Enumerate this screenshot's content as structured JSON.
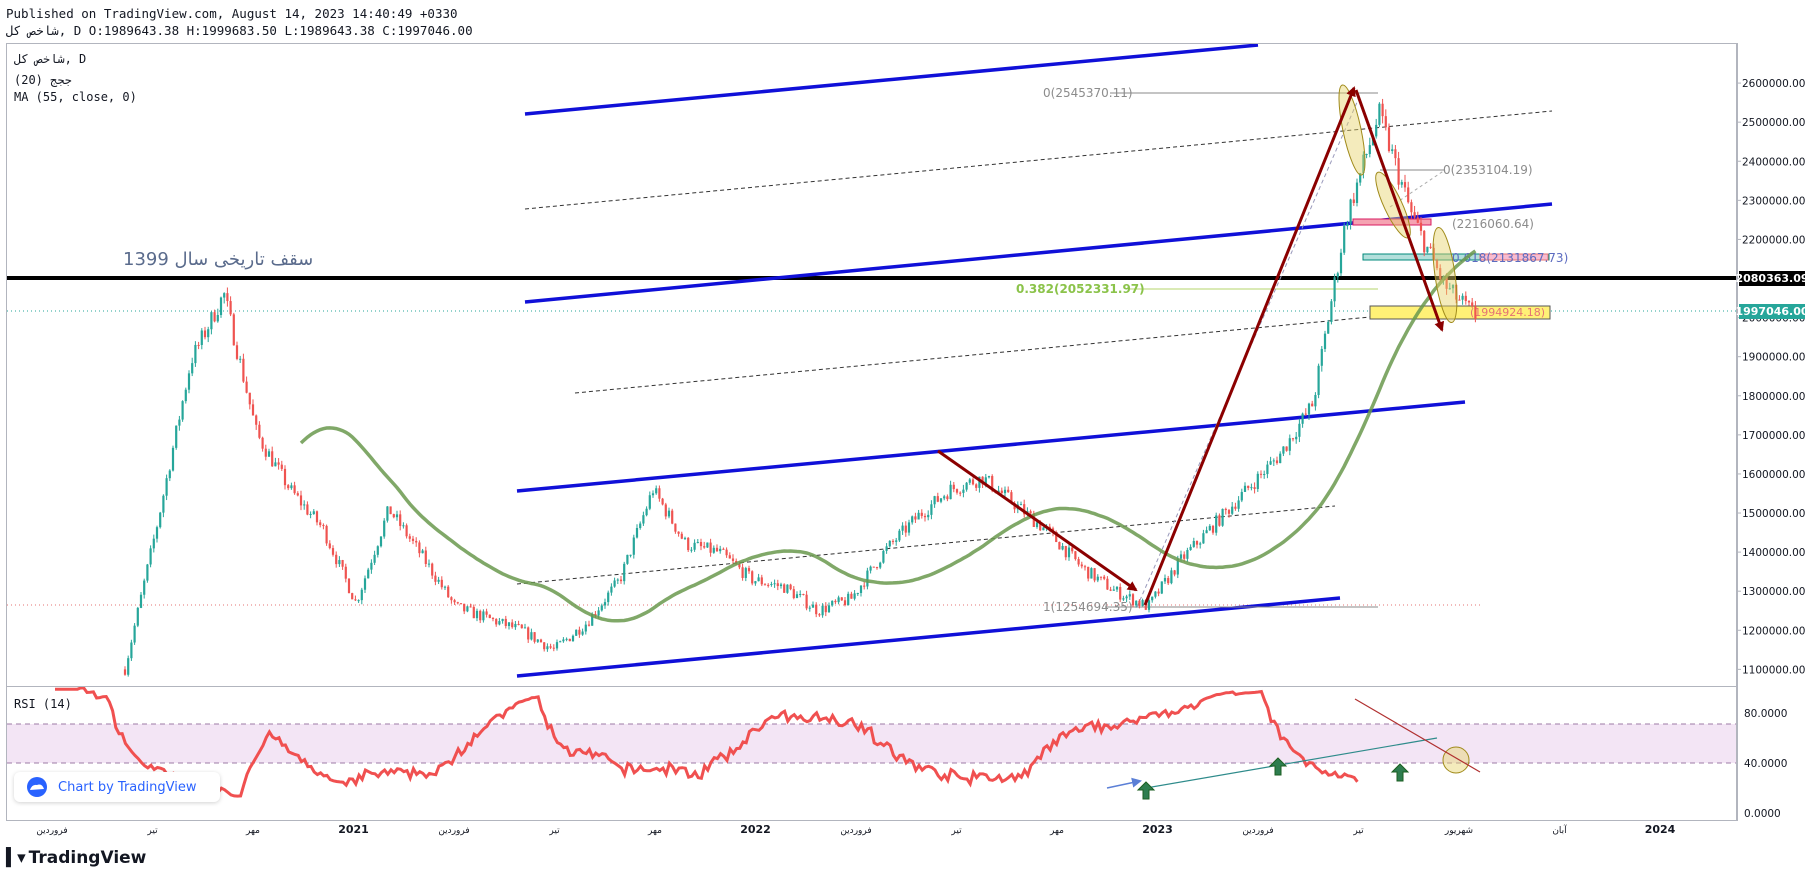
{
  "header": {
    "published": "Published on TradingView.com, August 14, 2023 14:40:49 +0330",
    "ohlc": "شاخص کل, D O:1989643.38 H:1999683.50 L:1989643.38 C:1997046.00"
  },
  "legend": {
    "symbol": "شاخص کل, D",
    "indicator1": "(20) ججج",
    "indicator2": "MA (55, close, 0)"
  },
  "rsi": {
    "label": "RSI (14)"
  },
  "branding": {
    "chart_by": "Chart by TradingView",
    "footer": "TradingView"
  },
  "colors": {
    "up": "#26a69a",
    "down": "#ef5350",
    "channel": "#0000ff",
    "arrow": "#8b0000",
    "ma": "#5e8f3a",
    "rsi": "#f05050",
    "rsi_band": "#f3e5f5",
    "fib_green": "#8bc34a"
  },
  "chart_data": [
    {
      "type": "line",
      "title": "شاخص کل, D",
      "y_axis_ticks": [
        "2600000.00",
        "2500000.00",
        "2400000.00",
        "2300000.00",
        "2200000.00",
        "2100000.00",
        "2000000.00",
        "1900000.00",
        "1800000.00",
        "1700000.00",
        "1600000.00",
        "1500000.00",
        "1400000.00",
        "1300000.00",
        "1200000.00",
        "1100000.00"
      ],
      "ylim": [
        1060000,
        2700000
      ],
      "x_axis_ticks": [
        "فروردین",
        "تیر",
        "مهر",
        "2021",
        "فروردین",
        "تیر",
        "مهر",
        "2022",
        "فروردین",
        "تیر",
        "مهر",
        "2023",
        "فروردین",
        "تیر",
        "شهریور",
        "آبان",
        "2024"
      ],
      "price_labels": {
        "horizontal_line": "2080363.09",
        "last_close": "1997046.00"
      },
      "annotations": {
        "historic_top": "سقف تاریخی سال 1399",
        "fib_top": "0(2545370.11)",
        "fib_second": "0(2353104.19)",
        "fib_third": "(2216060.64)",
        "fib_fourth": "0.618(2131867.73)",
        "fib_382": "0.382(2052331.97)",
        "fib_bottom": "1(1254694.35)",
        "fib_yellow": "(1994924.18)"
      },
      "series": [
        {
          "name": "شاخص کل",
          "x": [
            "2020-03",
            "2020-04",
            "2020-05",
            "2020-06",
            "2020-07",
            "2020-08",
            "2020-09",
            "2020-10",
            "2020-11",
            "2020-12",
            "2021-01",
            "2021-02",
            "2021-03",
            "2021-04",
            "2021-05",
            "2021-06",
            "2021-07",
            "2021-08",
            "2021-09",
            "2021-10",
            "2021-11",
            "2021-12",
            "2022-01",
            "2022-02",
            "2022-03",
            "2022-04",
            "2022-05",
            "2022-06",
            "2022-07",
            "2022-08",
            "2022-09",
            "2022-10",
            "2022-11",
            "2022-12",
            "2023-01",
            "2023-02",
            "2023-03",
            "2023-04",
            "2023-05",
            "2023-06",
            "2023-07",
            "2023-08"
          ],
          "values": [
            1100000,
            1480000,
            1890000,
            2060000,
            1700000,
            1560000,
            1460000,
            1270000,
            1510000,
            1390000,
            1260000,
            1230000,
            1200000,
            1150000,
            1220000,
            1330000,
            1560000,
            1420000,
            1400000,
            1330000,
            1310000,
            1250000,
            1280000,
            1400000,
            1490000,
            1560000,
            1590000,
            1520000,
            1450000,
            1360000,
            1300000,
            1260000,
            1380000,
            1470000,
            1560000,
            1650000,
            1780000,
            2250000,
            2520000,
            2260000,
            2080000,
            1997046
          ]
        }
      ]
    },
    {
      "type": "line",
      "title": "RSI (14)",
      "y_axis_ticks": [
        "80.0000",
        "40.0000",
        "0.0000"
      ],
      "ylim": [
        -5,
        100
      ],
      "bands": [
        70,
        30
      ]
    }
  ]
}
